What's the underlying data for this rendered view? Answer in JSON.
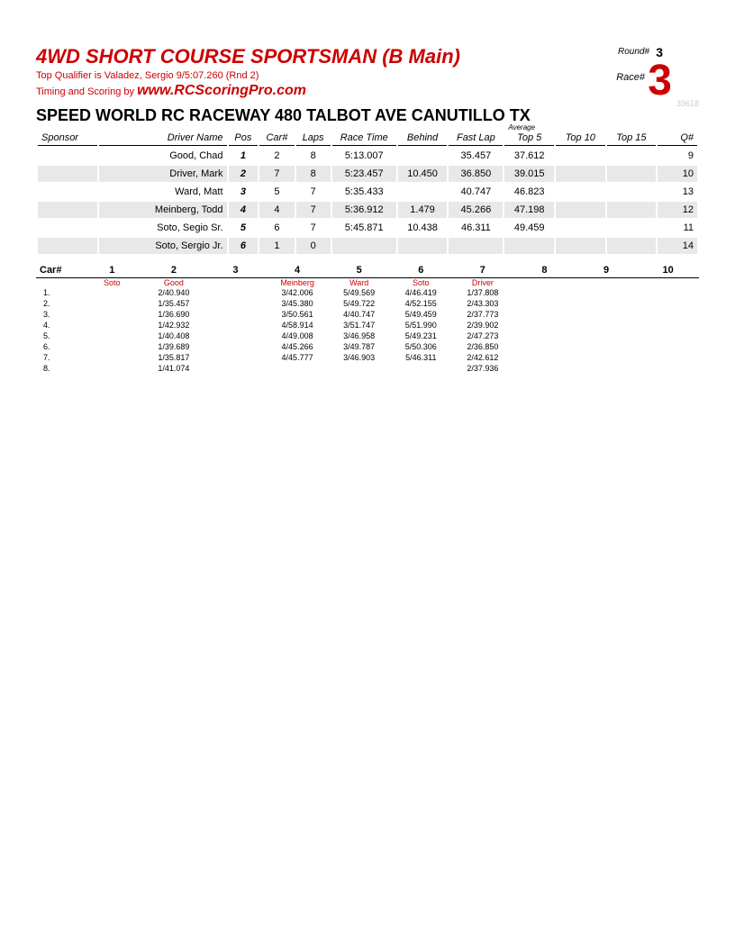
{
  "header": {
    "title": "4WD SHORT COURSE SPORTSMAN (B Main)",
    "subtitle": "Top Qualifier is Valadez, Sergio 9/5:07.260 (Rnd 2)",
    "timing_prefix": "Timing and Scoring by ",
    "timing_url": "www.RCScoringPro.com",
    "round_label": "Round#",
    "round_num": "3",
    "race_label": "Race#",
    "race_num": "3",
    "ref": "39618"
  },
  "venue": "SPEED WORLD RC RACEWAY 480 TALBOT AVE CANUTILLO TX",
  "results": {
    "headers": {
      "sponsor": "Sponsor",
      "driver": "Driver Name",
      "pos": "Pos",
      "car": "Car#",
      "laps": "Laps",
      "racetime": "Race Time",
      "behind": "Behind",
      "fastlap": "Fast Lap",
      "avg": "Average",
      "top5": "Top 5",
      "top10": "Top 10",
      "top15": "Top 15",
      "q": "Q#"
    },
    "rows": [
      {
        "driver": "Good, Chad",
        "pos": "1",
        "car": "2",
        "laps": "8",
        "time": "5:13.007",
        "behind": "",
        "fast": "35.457",
        "top5": "37.612",
        "top10": "",
        "top15": "",
        "q": "9",
        "alt": false
      },
      {
        "driver": "Driver, Mark",
        "pos": "2",
        "car": "7",
        "laps": "8",
        "time": "5:23.457",
        "behind": "10.450",
        "fast": "36.850",
        "top5": "39.015",
        "top10": "",
        "top15": "",
        "q": "10",
        "alt": true
      },
      {
        "driver": "Ward, Matt",
        "pos": "3",
        "car": "5",
        "laps": "7",
        "time": "5:35.433",
        "behind": "",
        "fast": "40.747",
        "top5": "46.823",
        "top10": "",
        "top15": "",
        "q": "13",
        "alt": false
      },
      {
        "driver": "Meinberg, Todd",
        "pos": "4",
        "car": "4",
        "laps": "7",
        "time": "5:36.912",
        "behind": "1.479",
        "fast": "45.266",
        "top5": "47.198",
        "top10": "",
        "top15": "",
        "q": "12",
        "alt": true
      },
      {
        "driver": "Soto, Segio Sr.",
        "pos": "5",
        "car": "6",
        "laps": "7",
        "time": "5:45.871",
        "behind": "10.438",
        "fast": "46.311",
        "top5": "49.459",
        "top10": "",
        "top15": "",
        "q": "11",
        "alt": false
      },
      {
        "driver": "Soto, Sergio Jr.",
        "pos": "6",
        "car": "1",
        "laps": "0",
        "time": "",
        "behind": "",
        "fast": "",
        "top5": "",
        "top10": "",
        "top15": "",
        "q": "14",
        "alt": true
      }
    ]
  },
  "laps": {
    "car_label": "Car#",
    "car_nums": [
      "1",
      "2",
      "3",
      "4",
      "5",
      "6",
      "7",
      "8",
      "9",
      "10"
    ],
    "drivers": [
      "Soto",
      "Good",
      "",
      "Meinberg",
      "Ward",
      "Soto",
      "Driver",
      "",
      "",
      ""
    ],
    "rows": [
      {
        "n": "1.",
        "c": [
          "",
          "2/40.940",
          "",
          "3/42.006",
          "5/49.569",
          "4/46.419",
          "1/37.808",
          "",
          "",
          ""
        ]
      },
      {
        "n": "2.",
        "c": [
          "",
          "1/35.457",
          "",
          "3/45.380",
          "5/49.722",
          "4/52.155",
          "2/43.303",
          "",
          "",
          ""
        ]
      },
      {
        "n": "3.",
        "c": [
          "",
          "1/36.690",
          "",
          "3/50.561",
          "4/40.747",
          "5/49.459",
          "2/37.773",
          "",
          "",
          ""
        ]
      },
      {
        "n": "4.",
        "c": [
          "",
          "1/42.932",
          "",
          "4/58.914",
          "3/51.747",
          "5/51.990",
          "2/39.902",
          "",
          "",
          ""
        ]
      },
      {
        "n": "5.",
        "c": [
          "",
          "1/40.408",
          "",
          "4/49.008",
          "3/46.958",
          "5/49.231",
          "2/47.273",
          "",
          "",
          ""
        ]
      },
      {
        "n": "6.",
        "c": [
          "",
          "1/39.689",
          "",
          "4/45.266",
          "3/49.787",
          "5/50.306",
          "2/36.850",
          "",
          "",
          ""
        ]
      },
      {
        "n": "7.",
        "c": [
          "",
          "1/35.817",
          "",
          "4/45.777",
          "3/46.903",
          "5/46.311",
          "2/42.612",
          "",
          "",
          ""
        ]
      },
      {
        "n": "8.",
        "c": [
          "",
          "1/41.074",
          "",
          "",
          "",
          "",
          "2/37.936",
          "",
          "",
          ""
        ]
      }
    ]
  }
}
